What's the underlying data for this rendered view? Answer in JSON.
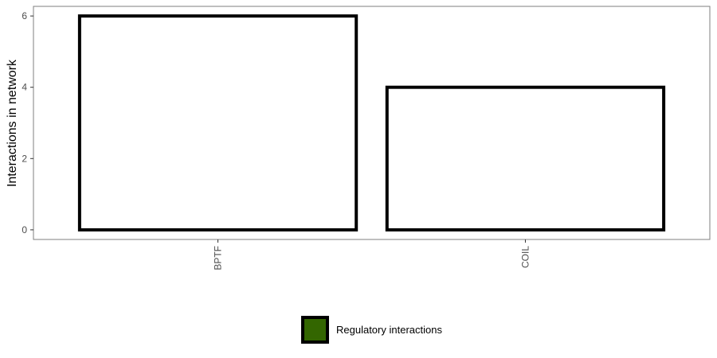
{
  "chart_data": {
    "type": "bar",
    "categories": [
      "BPTF",
      "COIL"
    ],
    "series": [
      {
        "name": "Regulatory interactions",
        "values": [
          6,
          4
        ]
      }
    ],
    "xlabel": "",
    "ylabel": "Interactions in network",
    "ylim": [
      -0.27,
      6.27
    ],
    "yticks": [
      0,
      2,
      4,
      6
    ],
    "grid": false,
    "legend_position": "bottom",
    "bar_fill": "#ffffff",
    "bar_stroke": "#000000",
    "legend_swatch_color": "#336600"
  }
}
